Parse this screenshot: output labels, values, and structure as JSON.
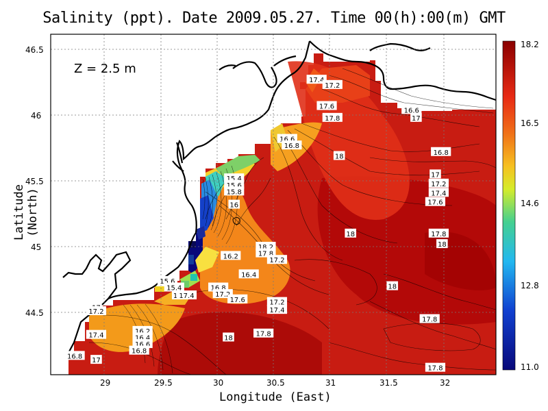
{
  "title": "Salinity (ppt). Date 2009.05.27. Time 00(h):00(m) GMT",
  "depth_label": "Z = 2.5 m",
  "xlabel": "Longitude (East)",
  "ylabel": "Latitude (North)",
  "x_ticks": [
    "29",
    "29.5",
    "30",
    "30.5",
    "31",
    "31.5",
    "32"
  ],
  "y_ticks": [
    "46.5",
    "46",
    "45.5",
    "45",
    "44.5"
  ],
  "colorbar_ticks": [
    "18.2",
    "16.5",
    "14.6",
    "12.8",
    "11.0"
  ],
  "contour_labels": [
    {
      "text": "17.4",
      "lon": 30.88,
      "lat": 46.27
    },
    {
      "text": "17.2",
      "lon": 31.02,
      "lat": 46.23
    },
    {
      "text": "17.6",
      "lon": 30.97,
      "lat": 46.07
    },
    {
      "text": "17.8",
      "lon": 31.02,
      "lat": 45.98
    },
    {
      "text": "16.6",
      "lon": 31.72,
      "lat": 46.04
    },
    {
      "text": "17",
      "lon": 31.76,
      "lat": 45.98
    },
    {
      "text": "16.6",
      "lon": 30.62,
      "lat": 45.82
    },
    {
      "text": "16.8",
      "lon": 30.66,
      "lat": 45.77
    },
    {
      "text": "18",
      "lon": 31.08,
      "lat": 45.69
    },
    {
      "text": "16.8",
      "lon": 31.98,
      "lat": 45.72
    },
    {
      "text": "17",
      "lon": 31.93,
      "lat": 45.55
    },
    {
      "text": "17.2",
      "lon": 31.96,
      "lat": 45.48
    },
    {
      "text": "17.4",
      "lon": 31.96,
      "lat": 45.41
    },
    {
      "text": "17.6",
      "lon": 31.93,
      "lat": 45.34
    },
    {
      "text": "15.4",
      "lon": 30.15,
      "lat": 45.52
    },
    {
      "text": "15.6",
      "lon": 30.15,
      "lat": 45.47
    },
    {
      "text": "15.8",
      "lon": 30.15,
      "lat": 45.42
    },
    {
      "text": "16",
      "lon": 30.15,
      "lat": 45.32
    },
    {
      "text": "18",
      "lon": 31.18,
      "lat": 45.1
    },
    {
      "text": "17.8",
      "lon": 31.96,
      "lat": 45.1
    },
    {
      "text": "18",
      "lon": 31.99,
      "lat": 45.02
    },
    {
      "text": "18.2",
      "lon": 30.43,
      "lat": 45.0
    },
    {
      "text": "17.8",
      "lon": 30.43,
      "lat": 44.95
    },
    {
      "text": "17.2",
      "lon": 30.53,
      "lat": 44.9
    },
    {
      "text": "16.2",
      "lon": 30.12,
      "lat": 44.93
    },
    {
      "text": "16.4",
      "lon": 30.28,
      "lat": 44.79
    },
    {
      "text": "15.6",
      "lon": 29.56,
      "lat": 44.74
    },
    {
      "text": "15.4",
      "lon": 29.62,
      "lat": 44.69
    },
    {
      "text": "16.8",
      "lon": 30.01,
      "lat": 44.69
    },
    {
      "text": "17.2",
      "lon": 30.05,
      "lat": 44.64
    },
    {
      "text": "16",
      "lon": 29.65,
      "lat": 44.63
    },
    {
      "text": "17.4",
      "lon": 29.73,
      "lat": 44.63
    },
    {
      "text": "17.6",
      "lon": 30.18,
      "lat": 44.6
    },
    {
      "text": "17.2",
      "lon": 30.53,
      "lat": 44.58
    },
    {
      "text": "17.4",
      "lon": 30.53,
      "lat": 44.52
    },
    {
      "text": "17",
      "lon": 28.93,
      "lat": 44.54
    },
    {
      "text": "17.2",
      "lon": 28.93,
      "lat": 44.51
    },
    {
      "text": "17.4",
      "lon": 28.93,
      "lat": 44.33
    },
    {
      "text": "16.2",
      "lon": 29.34,
      "lat": 44.36
    },
    {
      "text": "16.4",
      "lon": 29.34,
      "lat": 44.31
    },
    {
      "text": "16.6",
      "lon": 29.34,
      "lat": 44.26
    },
    {
      "text": "16.8",
      "lon": 29.31,
      "lat": 44.21
    },
    {
      "text": "17.8",
      "lon": 30.41,
      "lat": 44.34
    },
    {
      "text": "18",
      "lon": 30.1,
      "lat": 44.31
    },
    {
      "text": "16.8",
      "lon": 28.74,
      "lat": 44.17
    },
    {
      "text": "17",
      "lon": 28.93,
      "lat": 44.14
    },
    {
      "text": "18",
      "lon": 31.55,
      "lat": 44.7
    },
    {
      "text": "17.8",
      "lon": 31.88,
      "lat": 44.45
    },
    {
      "text": "17.8",
      "lon": 31.93,
      "lat": 44.08
    }
  ],
  "colors": {
    "deep_red": "#a00000",
    "red": "#d81c12",
    "orange": "#f39a1a",
    "yellow": "#f7e42a",
    "green": "#4ac46c",
    "cyan": "#2ad0e6",
    "blue": "#1040d0",
    "navy": "#08087a"
  }
}
